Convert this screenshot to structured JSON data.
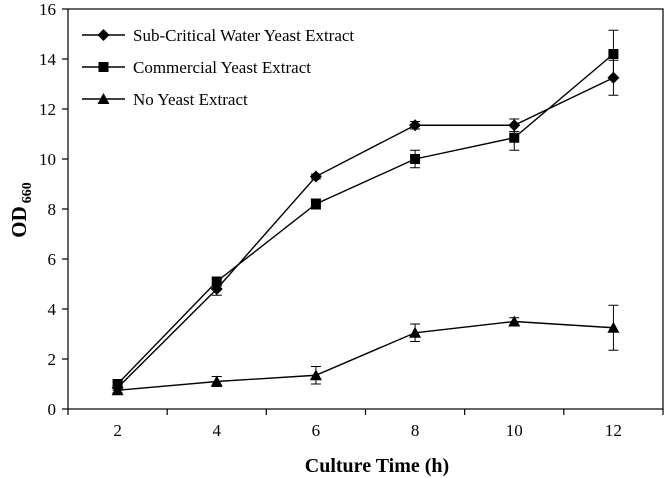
{
  "chart_data": {
    "type": "line",
    "title": "",
    "xlabel": "Culture Time (h)",
    "ylabel_main": "OD",
    "ylabel_sub": "660",
    "x": [
      2,
      4,
      6,
      8,
      10,
      12
    ],
    "xlim": [
      1,
      13
    ],
    "ylim": [
      0,
      16
    ],
    "xticks": [
      2,
      4,
      6,
      8,
      10,
      12
    ],
    "yticks": [
      0,
      2,
      4,
      6,
      8,
      10,
      12,
      14,
      16
    ],
    "grid": false,
    "legend_position": "top-left",
    "series": [
      {
        "name": "Sub-Critical Water Yeast Extract",
        "marker": "diamond",
        "color": "#000000",
        "values": [
          0.85,
          4.8,
          9.3,
          11.35,
          11.35,
          13.25
        ],
        "errors": [
          0.1,
          0.25,
          0.1,
          0.15,
          0.25,
          0.7
        ]
      },
      {
        "name": "Commercial Yeast Extract",
        "marker": "square",
        "color": "#000000",
        "values": [
          1.0,
          5.1,
          8.2,
          10.0,
          10.85,
          14.2
        ],
        "errors": [
          0.1,
          0.1,
          0.2,
          0.35,
          0.5,
          0.95
        ]
      },
      {
        "name": "No Yeast Extract",
        "marker": "triangle",
        "color": "#000000",
        "values": [
          0.75,
          1.1,
          1.35,
          3.05,
          3.5,
          3.25
        ],
        "errors": [
          0.1,
          0.2,
          0.35,
          0.35,
          0.15,
          0.9
        ]
      }
    ]
  }
}
